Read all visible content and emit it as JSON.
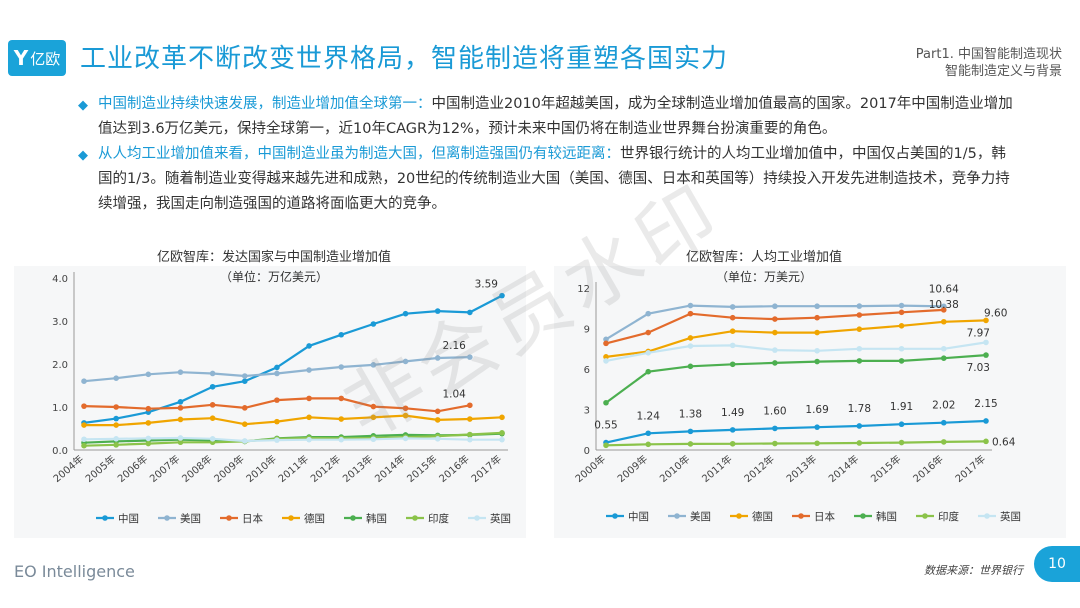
{
  "header": {
    "logo_text": "亿欧",
    "title": "工业改革不断改变世界格局，智能制造将重塑各国实力",
    "part_line1": "Part1. 中国智能制造现状",
    "part_line2": "智能制造定义与背景"
  },
  "bullets": [
    {
      "highlight": "中国制造业持续快速发展，制造业增加值全球第一：",
      "text": "中国制造业2010年超越美国，成为全球制造业增加值最高的国家。2017年中国制造业增加值达到3.6万亿美元，保持全球第一，近10年CAGR为12%，预计未来中国仍将在制造业世界舞台扮演重要的角色。"
    },
    {
      "highlight": "从人均工业增加值来看，中国制造业虽为制造大国，但离制造强国仍有较远距离：",
      "text": "世界银行统计的人均工业增加值中，中国仅占美国的1/5，韩国的1/3。随着制造业变得越来越先进和成熟，20世纪的传统制造业大国（美国、德国、日本和英国等）持续投入开发先进制造技术，竞争力持续增强，我国走向制造强国的道路将面临更大的竞争。"
    }
  ],
  "watermark": "非会员水印",
  "footer": {
    "brand": "EO Intelligence",
    "source": "数据来源：世界银行",
    "page": "10"
  },
  "chart_data": [
    {
      "type": "line",
      "title": "亿欧智库：发达国家与中国制造业增加值",
      "unit": "（单位：万亿美元）",
      "categories": [
        "2004年",
        "2005年",
        "2006年",
        "2007年",
        "2008年",
        "2009年",
        "2010年",
        "2011年",
        "2012年",
        "2013年",
        "2014年",
        "2015年",
        "2016年",
        "2017年"
      ],
      "ylim": [
        0,
        4
      ],
      "yticks": [
        "0.0",
        "1.0",
        "2.0",
        "3.0",
        "4.0"
      ],
      "series": [
        {
          "name": "中国",
          "color": "#1a9ad6",
          "values": [
            0.63,
            0.73,
            0.88,
            1.12,
            1.47,
            1.6,
            1.92,
            2.42,
            2.68,
            2.93,
            3.17,
            3.23,
            3.2,
            3.59
          ]
        },
        {
          "name": "美国",
          "color": "#8fb4d1",
          "values": [
            1.6,
            1.67,
            1.76,
            1.81,
            1.78,
            1.72,
            1.78,
            1.86,
            1.93,
            1.98,
            2.06,
            2.14,
            2.16,
            null
          ]
        },
        {
          "name": "日本",
          "color": "#e36b2c",
          "values": [
            1.02,
            1.0,
            0.96,
            0.98,
            1.05,
            0.98,
            1.16,
            1.2,
            1.2,
            1.01,
            0.97,
            0.9,
            1.04,
            null
          ]
        },
        {
          "name": "德国",
          "color": "#f0a500",
          "values": [
            0.58,
            0.58,
            0.63,
            0.71,
            0.74,
            0.6,
            0.66,
            0.76,
            0.72,
            0.76,
            0.8,
            0.7,
            0.72,
            0.76
          ]
        },
        {
          "name": "韩国",
          "color": "#4caf50",
          "values": [
            0.17,
            0.2,
            0.22,
            0.24,
            0.22,
            0.2,
            0.27,
            0.3,
            0.3,
            0.33,
            0.35,
            0.34,
            0.35,
            0.38
          ]
        },
        {
          "name": "印度",
          "color": "#8bc34a",
          "values": [
            0.1,
            0.12,
            0.15,
            0.18,
            0.18,
            0.2,
            0.26,
            0.28,
            0.27,
            0.28,
            0.3,
            0.32,
            0.36,
            0.4
          ]
        },
        {
          "name": "英国",
          "color": "#c5e5f2",
          "values": [
            0.25,
            0.26,
            0.27,
            0.28,
            0.26,
            0.21,
            0.23,
            0.24,
            0.24,
            0.25,
            0.27,
            0.26,
            0.24,
            0.24
          ]
        }
      ],
      "labels": [
        {
          "series": "中国",
          "index": 13,
          "text": "3.59"
        },
        {
          "series": "美国",
          "index": 12,
          "text": "2.16"
        },
        {
          "series": "日本",
          "index": 12,
          "text": "1.04"
        }
      ],
      "legend": [
        "中国",
        "美国",
        "日本",
        "德国",
        "韩国",
        "印度",
        "英国"
      ],
      "legend_position": "bottom"
    },
    {
      "type": "line",
      "title": "亿欧智库：人均工业增加值",
      "unit": "（单位：万美元）",
      "categories": [
        "2000年",
        "2009年",
        "2010年",
        "2011年",
        "2012年",
        "2013年",
        "2014年",
        "2015年",
        "2016年",
        "2017年"
      ],
      "ylim": [
        0,
        12
      ],
      "yticks": [
        "0",
        "3",
        "6",
        "9",
        "12"
      ],
      "series": [
        {
          "name": "中国",
          "color": "#1a9ad6",
          "values": [
            0.55,
            1.24,
            1.38,
            1.49,
            1.6,
            1.69,
            1.78,
            1.91,
            2.02,
            2.15
          ]
        },
        {
          "name": "美国",
          "color": "#8fb4d1",
          "values": [
            8.2,
            10.1,
            10.7,
            10.6,
            10.65,
            10.65,
            10.66,
            10.7,
            10.64,
            null
          ]
        },
        {
          "name": "德国",
          "color": "#f0a500",
          "values": [
            6.9,
            7.3,
            8.3,
            8.8,
            8.7,
            8.7,
            8.95,
            9.2,
            9.5,
            9.6
          ]
        },
        {
          "name": "日本",
          "color": "#e36b2c",
          "values": [
            7.9,
            8.7,
            10.1,
            9.8,
            9.7,
            9.8,
            10.0,
            10.2,
            10.38,
            null
          ]
        },
        {
          "name": "韩国",
          "color": "#4caf50",
          "values": [
            3.5,
            5.8,
            6.2,
            6.35,
            6.45,
            6.55,
            6.6,
            6.6,
            6.8,
            7.03
          ]
        },
        {
          "name": "印度",
          "color": "#8bc34a",
          "values": [
            0.35,
            0.42,
            0.45,
            0.46,
            0.48,
            0.5,
            0.52,
            0.55,
            0.6,
            0.64
          ]
        },
        {
          "name": "英国",
          "color": "#c5e5f2",
          "values": [
            6.6,
            7.2,
            7.7,
            7.75,
            7.4,
            7.35,
            7.5,
            7.5,
            7.5,
            7.97
          ]
        }
      ],
      "labels": [
        {
          "series": "中国",
          "index": 0,
          "text": "0.55"
        },
        {
          "series": "中国",
          "index": 1,
          "text": "1.24"
        },
        {
          "series": "中国",
          "index": 2,
          "text": "1.38"
        },
        {
          "series": "中国",
          "index": 3,
          "text": "1.49"
        },
        {
          "series": "中国",
          "index": 4,
          "text": "1.60"
        },
        {
          "series": "中国",
          "index": 5,
          "text": "1.69"
        },
        {
          "series": "中国",
          "index": 6,
          "text": "1.78"
        },
        {
          "series": "中国",
          "index": 7,
          "text": "1.91"
        },
        {
          "series": "中国",
          "index": 8,
          "text": "2.02"
        },
        {
          "series": "中国",
          "index": 9,
          "text": "2.15"
        },
        {
          "series": "美国",
          "index": 8,
          "text": "10.64"
        },
        {
          "series": "日本",
          "index": 8,
          "text": "10.38"
        },
        {
          "series": "德国",
          "index": 9,
          "text": "9.60"
        },
        {
          "series": "英国",
          "index": 9,
          "text": "7.97"
        },
        {
          "series": "韩国",
          "index": 9,
          "text": "7.03"
        },
        {
          "series": "印度",
          "index": 9,
          "text": "0.64"
        }
      ],
      "legend": [
        "中国",
        "美国",
        "德国",
        "日本",
        "韩国",
        "印度",
        "英国"
      ],
      "legend_position": "bottom"
    }
  ]
}
